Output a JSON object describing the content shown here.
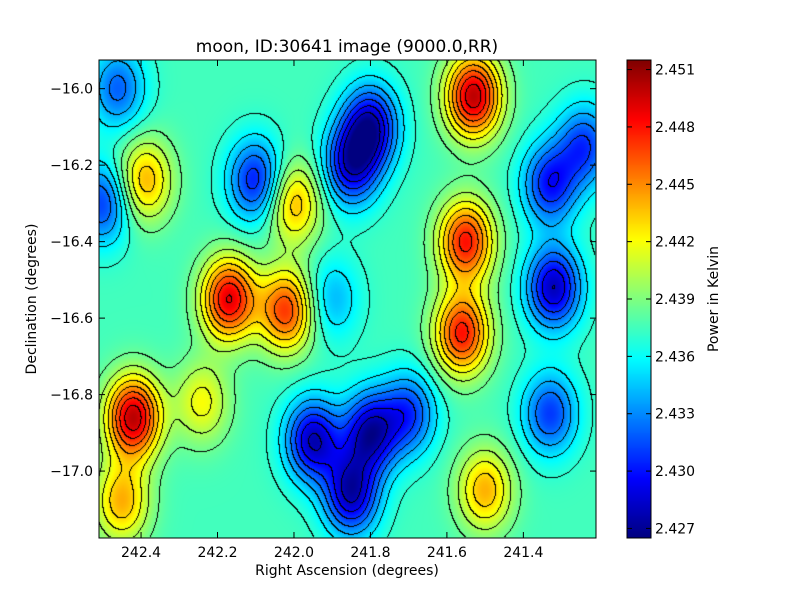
{
  "chart_data": {
    "type": "heatmap",
    "title": "moon, ID:30641 image (9000.0,RR)",
    "xlabel": "Right Ascension (degrees)",
    "ylabel": "Declination (degrees)",
    "xlim": [
      242.51,
      241.21
    ],
    "ylim": [
      -17.175,
      -15.925
    ],
    "x_ticks": [
      {
        "value": 242.4,
        "label": "242.4"
      },
      {
        "value": 242.2,
        "label": "242.2"
      },
      {
        "value": 242.0,
        "label": "242.0"
      },
      {
        "value": 241.8,
        "label": "241.8"
      },
      {
        "value": 241.6,
        "label": "241.6"
      },
      {
        "value": 241.4,
        "label": "241.4"
      }
    ],
    "y_ticks": [
      {
        "value": -16.0,
        "label": "−16.0"
      },
      {
        "value": -16.2,
        "label": "−16.2"
      },
      {
        "value": -16.4,
        "label": "−16.4"
      },
      {
        "value": -16.6,
        "label": "−16.6"
      },
      {
        "value": -16.8,
        "label": "−16.8"
      },
      {
        "value": -17.0,
        "label": "−17.0"
      }
    ],
    "colorbar": {
      "label": "Power in Kelvin",
      "range": [
        2.4265,
        2.4515
      ],
      "colormap": "jet",
      "ticks": [
        {
          "value": 2.427,
          "label": "2.427"
        },
        {
          "value": 2.43,
          "label": "2.430"
        },
        {
          "value": 2.433,
          "label": "2.433"
        },
        {
          "value": 2.436,
          "label": "2.436"
        },
        {
          "value": 2.439,
          "label": "2.439"
        },
        {
          "value": 2.442,
          "label": "2.442"
        },
        {
          "value": 2.445,
          "label": "2.445"
        },
        {
          "value": 2.448,
          "label": "2.448"
        },
        {
          "value": 2.451,
          "label": "2.451"
        }
      ]
    },
    "features": [
      {
        "ra": 242.42,
        "dec": -16.86,
        "value": 2.45,
        "kind": "hotspot"
      },
      {
        "ra": 242.17,
        "dec": -16.55,
        "value": 2.449,
        "kind": "hotspot"
      },
      {
        "ra": 242.02,
        "dec": -16.58,
        "value": 2.447,
        "kind": "hotspot"
      },
      {
        "ra": 241.53,
        "dec": -16.02,
        "value": 2.45,
        "kind": "hotspot"
      },
      {
        "ra": 241.55,
        "dec": -16.4,
        "value": 2.448,
        "kind": "hotspot"
      },
      {
        "ra": 241.56,
        "dec": -16.64,
        "value": 2.448,
        "kind": "hotspot"
      },
      {
        "ra": 242.39,
        "dec": -16.24,
        "value": 2.444,
        "kind": "hotspot"
      },
      {
        "ra": 242.24,
        "dec": -16.82,
        "value": 2.442,
        "kind": "hotspot"
      },
      {
        "ra": 242.45,
        "dec": -17.08,
        "value": 2.444,
        "kind": "hotspot"
      },
      {
        "ra": 241.5,
        "dec": -17.05,
        "value": 2.444,
        "kind": "hotspot"
      },
      {
        "ra": 242.0,
        "dec": -16.3,
        "value": 2.444,
        "kind": "hotspot"
      },
      {
        "ra": 241.8,
        "dec": -16.1,
        "value": 2.428,
        "kind": "coldspot"
      },
      {
        "ra": 241.85,
        "dec": -16.2,
        "value": 2.429,
        "kind": "coldspot"
      },
      {
        "ra": 241.95,
        "dec": -16.92,
        "value": 2.428,
        "kind": "coldspot"
      },
      {
        "ra": 241.8,
        "dec": -16.9,
        "value": 2.428,
        "kind": "coldspot"
      },
      {
        "ra": 241.85,
        "dec": -17.06,
        "value": 2.428,
        "kind": "coldspot"
      },
      {
        "ra": 242.1,
        "dec": -16.24,
        "value": 2.43,
        "kind": "coldspot"
      },
      {
        "ra": 241.32,
        "dec": -16.52,
        "value": 2.428,
        "kind": "coldspot"
      },
      {
        "ra": 241.33,
        "dec": -16.25,
        "value": 2.43,
        "kind": "coldspot"
      },
      {
        "ra": 242.5,
        "dec": -16.3,
        "value": 2.431,
        "kind": "coldspot"
      },
      {
        "ra": 242.46,
        "dec": -16.0,
        "value": 2.432,
        "kind": "coldspot"
      },
      {
        "ra": 241.9,
        "dec": -16.55,
        "value": 2.434,
        "kind": "coldspot"
      },
      {
        "ra": 241.24,
        "dec": -16.15,
        "value": 2.431,
        "kind": "coldspot"
      },
      {
        "ra": 241.33,
        "dec": -16.85,
        "value": 2.431,
        "kind": "coldspot"
      },
      {
        "ra": 241.7,
        "dec": -16.85,
        "value": 2.431,
        "kind": "coldspot"
      }
    ],
    "contours": true,
    "grid": false,
    "legend": "none"
  }
}
